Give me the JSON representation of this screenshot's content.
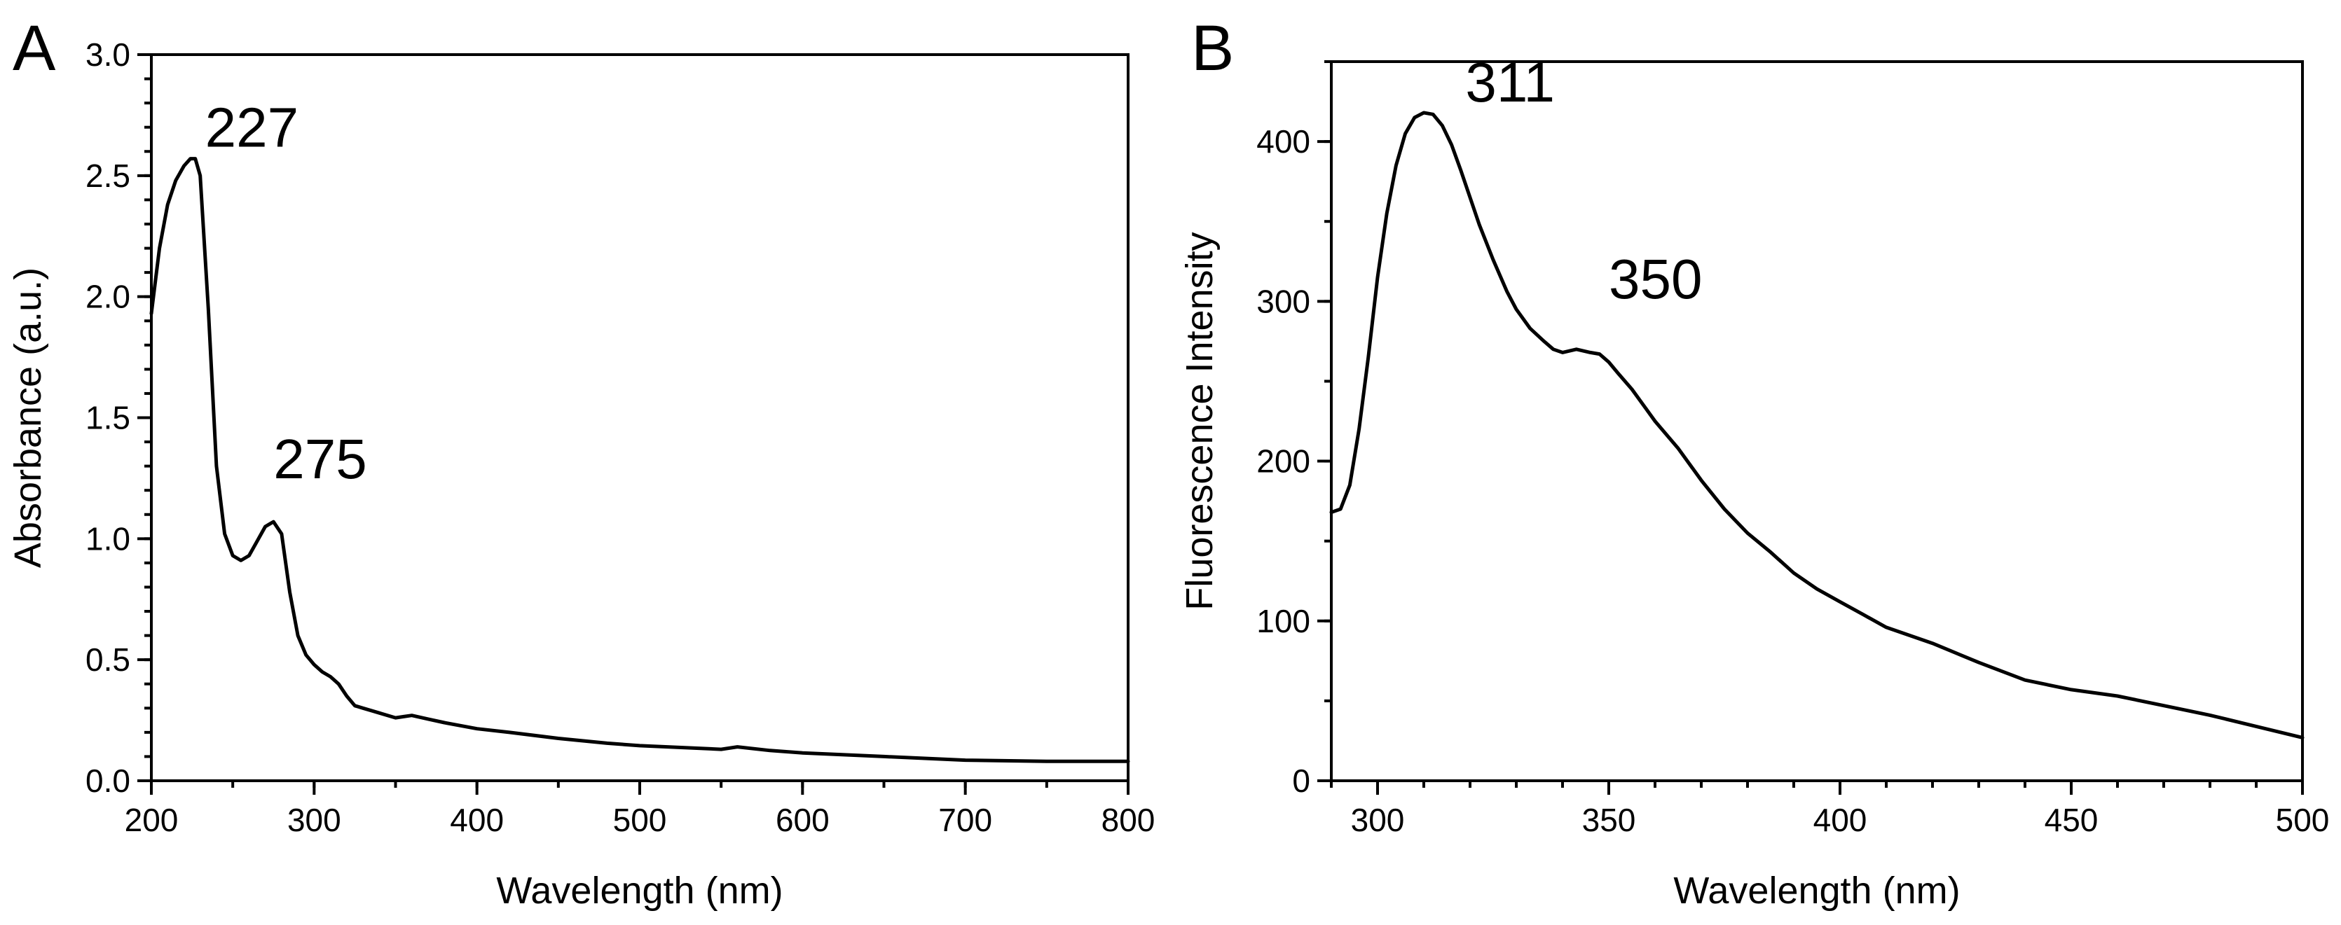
{
  "chart_data": [
    {
      "panel_label": "A",
      "type": "line",
      "title": "",
      "xlabel": "Wavelength (nm)",
      "ylabel": "Absorbance (a.u.)",
      "xlim": [
        200,
        800
      ],
      "ylim": [
        0,
        3.0
      ],
      "x_major_ticks": [
        200,
        300,
        400,
        500,
        600,
        700,
        800
      ],
      "x_tick_labels": [
        "200",
        "300",
        "400",
        "500",
        "600",
        "700",
        "800"
      ],
      "x_minor_step": 50,
      "y_major_ticks": [
        0,
        0.5,
        1.0,
        1.5,
        2.0,
        2.5,
        3.0
      ],
      "y_tick_labels": [
        "0.0",
        "0.5",
        "1.0",
        "1.5",
        "2.0",
        "2.5",
        "3.0"
      ],
      "y_minor_step": 0.1,
      "series": [
        {
          "name": "Absorbance",
          "x": [
            200,
            205,
            210,
            215,
            220,
            224,
            227,
            230,
            235,
            240,
            245,
            250,
            255,
            260,
            265,
            270,
            275,
            280,
            285,
            290,
            295,
            300,
            305,
            310,
            315,
            320,
            325,
            330,
            340,
            350,
            355,
            360,
            370,
            380,
            400,
            420,
            450,
            480,
            500,
            550,
            560,
            580,
            600,
            650,
            700,
            750,
            800
          ],
          "y": [
            1.93,
            2.2,
            2.38,
            2.48,
            2.54,
            2.57,
            2.57,
            2.5,
            1.95,
            1.3,
            1.02,
            0.93,
            0.91,
            0.93,
            0.99,
            1.05,
            1.07,
            1.02,
            0.78,
            0.6,
            0.52,
            0.48,
            0.45,
            0.43,
            0.4,
            0.35,
            0.31,
            0.3,
            0.28,
            0.26,
            0.265,
            0.27,
            0.255,
            0.24,
            0.215,
            0.2,
            0.175,
            0.155,
            0.145,
            0.13,
            0.14,
            0.125,
            0.115,
            0.1,
            0.085,
            0.08,
            0.08
          ]
        }
      ],
      "annotations": [
        {
          "text": "227",
          "x": 233,
          "y": 2.62
        },
        {
          "text": "275",
          "x": 275,
          "y": 1.25
        }
      ]
    },
    {
      "panel_label": "B",
      "type": "line",
      "title": "",
      "xlabel": "Wavelength (nm)",
      "ylabel": "Fluorescence Intensity",
      "xlim": [
        290,
        500
      ],
      "ylim": [
        0,
        450
      ],
      "x_major_ticks": [
        300,
        350,
        400,
        450,
        500
      ],
      "x_tick_labels": [
        "300",
        "350",
        "400",
        "450",
        "500"
      ],
      "x_minor_step": 10,
      "y_major_ticks": [
        0,
        100,
        200,
        300,
        400
      ],
      "y_tick_labels": [
        "0",
        "100",
        "200",
        "300",
        "400"
      ],
      "y_minor_step": 50,
      "series": [
        {
          "name": "Fluorescence",
          "x": [
            290,
            292,
            294,
            296,
            298,
            300,
            302,
            304,
            306,
            308,
            310,
            312,
            314,
            316,
            318,
            320,
            322,
            325,
            328,
            330,
            333,
            336,
            338,
            340,
            343,
            346,
            348,
            350,
            352,
            355,
            358,
            360,
            365,
            370,
            375,
            380,
            385,
            390,
            395,
            400,
            405,
            410,
            420,
            430,
            440,
            450,
            460,
            470,
            480,
            490,
            500
          ],
          "y": [
            168,
            170,
            185,
            220,
            265,
            315,
            355,
            385,
            405,
            415,
            418,
            417,
            410,
            398,
            382,
            365,
            348,
            326,
            306,
            295,
            283,
            275,
            270,
            268,
            270,
            268,
            267,
            262,
            255,
            245,
            233,
            225,
            208,
            188,
            170,
            155,
            143,
            130,
            120,
            112,
            104,
            96,
            86,
            74,
            63,
            57,
            53,
            47,
            41,
            34,
            27
          ]
        }
      ],
      "annotations": [
        {
          "text": "311",
          "x": 319,
          "y": 425
        },
        {
          "text": "350",
          "x": 350,
          "y": 302
        }
      ]
    }
  ]
}
